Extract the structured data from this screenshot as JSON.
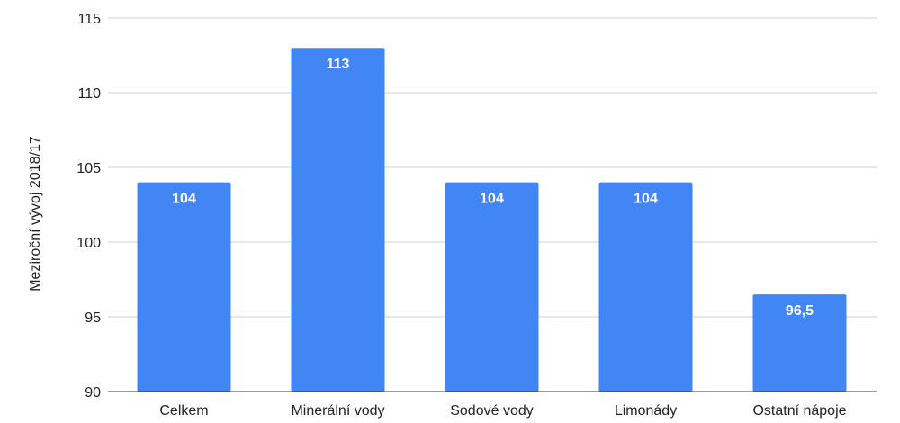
{
  "chart_data": {
    "type": "bar",
    "categories": [
      "Celkem",
      "Minerální vody",
      "Sodové vody",
      "Limonády",
      "Ostatní nápoje"
    ],
    "values": [
      104,
      113,
      104,
      104,
      96.5
    ],
    "data_labels": [
      "104",
      "113",
      "104",
      "104",
      "96,5"
    ],
    "ylabel": "Meziroční vývoj 2018/17",
    "ylim": [
      90,
      115
    ],
    "yticks": [
      90,
      95,
      100,
      105,
      110,
      115
    ],
    "grid": true,
    "bar_color": "#4285f4"
  }
}
